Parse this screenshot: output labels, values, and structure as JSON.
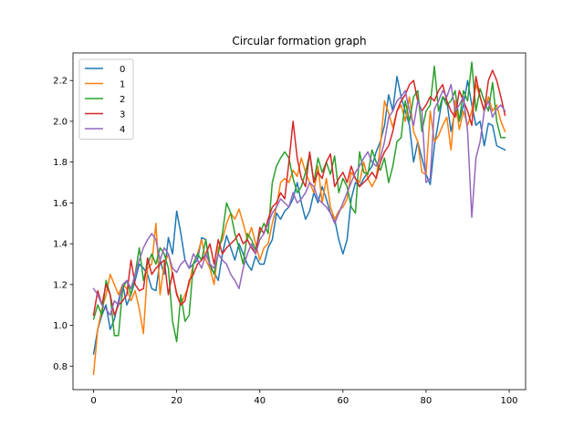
{
  "chart_data": {
    "type": "line",
    "title": "Circular formation graph",
    "xlabel": "",
    "ylabel": "",
    "xlim": [
      -4.95,
      103.95
    ],
    "ylim": [
      0.685,
      2.335
    ],
    "x_ticks": [
      0,
      20,
      40,
      60,
      80,
      100
    ],
    "y_ticks": [
      0.8,
      1.0,
      1.2,
      1.4,
      1.6,
      1.8,
      2.0,
      2.2
    ],
    "grid": false,
    "legend_position": "upper-left",
    "x": [
      0,
      1,
      2,
      3,
      4,
      5,
      6,
      7,
      8,
      9,
      10,
      11,
      12,
      13,
      14,
      15,
      16,
      17,
      18,
      19,
      20,
      21,
      22,
      23,
      24,
      25,
      26,
      27,
      28,
      29,
      30,
      31,
      32,
      33,
      34,
      35,
      36,
      37,
      38,
      39,
      40,
      41,
      42,
      43,
      44,
      45,
      46,
      47,
      48,
      49,
      50,
      51,
      52,
      53,
      54,
      55,
      56,
      57,
      58,
      59,
      60,
      61,
      62,
      63,
      64,
      65,
      66,
      67,
      68,
      69,
      70,
      71,
      72,
      73,
      74,
      75,
      76,
      77,
      78,
      79,
      80,
      81,
      82,
      83,
      84,
      85,
      86,
      87,
      88,
      89,
      90,
      91,
      92,
      93,
      94,
      95,
      96,
      97,
      98,
      99
    ],
    "series": [
      {
        "name": "0",
        "color": "#1f77b4",
        "values": [
          0.86,
          0.98,
          1.05,
          1.1,
          0.98,
          1.03,
          1.12,
          1.2,
          1.1,
          1.15,
          1.22,
          1.3,
          1.28,
          1.25,
          1.18,
          1.17,
          1.32,
          1.25,
          1.43,
          1.35,
          1.56,
          1.45,
          1.32,
          1.28,
          1.3,
          1.32,
          1.43,
          1.42,
          1.28,
          1.26,
          1.22,
          1.35,
          1.44,
          1.38,
          1.32,
          1.4,
          1.35,
          1.3,
          1.27,
          1.34,
          1.3,
          1.3,
          1.38,
          1.42,
          1.55,
          1.52,
          1.56,
          1.58,
          1.62,
          1.7,
          1.6,
          1.52,
          1.56,
          1.65,
          1.6,
          1.68,
          1.62,
          1.55,
          1.52,
          1.42,
          1.35,
          1.42,
          1.62,
          1.7,
          1.68,
          1.72,
          1.75,
          1.78,
          1.85,
          1.9,
          1.98,
          2.13,
          2.05,
          2.22,
          2.12,
          2.05,
          1.98,
          1.8,
          1.9,
          1.82,
          1.74,
          1.69,
          1.88,
          2.0,
          2.12,
          2.1,
          1.95,
          2.05,
          2.0,
          2.08,
          2.2,
          2.08,
          1.98,
          2.0,
          1.88,
          1.99,
          1.98,
          1.88,
          1.87,
          1.86
        ]
      },
      {
        "name": "1",
        "color": "#ff7f0e",
        "values": [
          0.76,
          0.98,
          1.08,
          1.15,
          1.25,
          1.2,
          1.15,
          1.2,
          1.18,
          1.12,
          1.17,
          1.08,
          0.96,
          1.28,
          1.3,
          1.5,
          1.15,
          1.3,
          1.35,
          1.25,
          1.16,
          1.1,
          1.15,
          1.2,
          1.3,
          1.35,
          1.42,
          1.32,
          1.28,
          1.2,
          1.38,
          1.42,
          1.5,
          1.55,
          1.52,
          1.57,
          1.5,
          1.42,
          1.48,
          1.4,
          1.32,
          1.38,
          1.4,
          1.5,
          1.58,
          1.7,
          1.72,
          1.7,
          1.76,
          1.73,
          1.82,
          1.75,
          1.7,
          1.65,
          1.78,
          1.6,
          1.72,
          1.58,
          1.52,
          1.56,
          1.58,
          1.62,
          1.75,
          1.72,
          1.7,
          1.8,
          1.72,
          1.68,
          1.72,
          1.88,
          2.1,
          2.04,
          1.97,
          2.05,
          2.08,
          2.0,
          2.12,
          1.95,
          1.9,
          1.75,
          1.74,
          2.05,
          1.9,
          1.93,
          1.98,
          2.02,
          1.86,
          2.1,
          1.96,
          2.05,
          1.98,
          2.05,
          2.18,
          2.12,
          2.05,
          2.12,
          2.05,
          2.08,
          2.0,
          1.95
        ]
      },
      {
        "name": "2",
        "color": "#2ca02c",
        "values": [
          1.03,
          1.1,
          1.05,
          1.22,
          1.15,
          0.95,
          0.95,
          1.18,
          1.22,
          1.15,
          1.25,
          1.38,
          1.22,
          1.3,
          1.35,
          1.3,
          1.38,
          1.35,
          1.28,
          1.02,
          0.92,
          1.15,
          1.02,
          1.05,
          1.3,
          1.35,
          1.32,
          1.42,
          1.3,
          1.25,
          1.35,
          1.45,
          1.6,
          1.55,
          1.45,
          1.38,
          1.3,
          1.45,
          1.42,
          1.37,
          1.45,
          1.5,
          1.45,
          1.7,
          1.78,
          1.82,
          1.85,
          1.82,
          1.72,
          1.65,
          1.68,
          1.75,
          1.84,
          1.7,
          1.82,
          1.75,
          1.8,
          1.74,
          1.83,
          1.65,
          1.72,
          1.68,
          1.58,
          1.55,
          1.85,
          1.75,
          1.74,
          1.86,
          1.8,
          1.76,
          1.82,
          1.7,
          1.78,
          1.9,
          1.92,
          2.1,
          2.0,
          2.12,
          2.15,
          1.95,
          2.05,
          2.08,
          2.27,
          2.05,
          2.12,
          2.08,
          2.1,
          2.15,
          2.0,
          2.15,
          2.1,
          2.29,
          2.05,
          2.16,
          2.1,
          2.05,
          2.19,
          2.0,
          1.92,
          1.92
        ]
      },
      {
        "name": "3",
        "color": "#d62728",
        "values": [
          1.05,
          1.17,
          1.1,
          1.2,
          1.15,
          1.05,
          1.1,
          1.12,
          1.15,
          1.32,
          1.2,
          1.17,
          1.18,
          1.33,
          1.25,
          1.28,
          1.3,
          1.32,
          1.15,
          1.26,
          1.15,
          1.1,
          1.12,
          1.22,
          1.25,
          1.3,
          1.32,
          1.35,
          1.4,
          1.3,
          1.42,
          1.35,
          1.38,
          1.4,
          1.42,
          1.45,
          1.4,
          1.42,
          1.38,
          1.35,
          1.48,
          1.45,
          1.52,
          1.58,
          1.6,
          1.65,
          1.62,
          1.8,
          2.0,
          1.82,
          1.72,
          1.68,
          1.85,
          1.7,
          1.75,
          1.72,
          1.8,
          1.84,
          1.68,
          1.72,
          1.75,
          1.7,
          1.78,
          1.72,
          1.68,
          1.7,
          1.72,
          1.75,
          1.72,
          1.8,
          1.85,
          1.88,
          1.95,
          2.05,
          2.1,
          2.13,
          2.18,
          2.2,
          2.1,
          2.05,
          2.08,
          2.12,
          2.1,
          2.15,
          2.18,
          2.1,
          2.05,
          2.02,
          2.15,
          2.1,
          2.05,
          1.98,
          2.22,
          2.12,
          2.05,
          2.2,
          2.25,
          2.2,
          2.12,
          2.03
        ]
      },
      {
        "name": "4",
        "color": "#9467bd",
        "values": [
          1.18,
          1.15,
          1.1,
          1.08,
          1.05,
          1.12,
          1.1,
          1.2,
          1.22,
          1.18,
          1.25,
          1.32,
          1.38,
          1.42,
          1.45,
          1.42,
          1.32,
          1.38,
          1.35,
          1.28,
          1.26,
          1.3,
          1.32,
          1.28,
          1.35,
          1.32,
          1.28,
          1.35,
          1.3,
          1.28,
          1.35,
          1.32,
          1.3,
          1.25,
          1.22,
          1.18,
          1.28,
          1.35,
          1.4,
          1.35,
          1.42,
          1.45,
          1.5,
          1.55,
          1.58,
          1.62,
          1.6,
          1.58,
          1.65,
          1.6,
          1.62,
          1.65,
          1.7,
          1.68,
          1.62,
          1.6,
          1.58,
          1.55,
          1.5,
          1.55,
          1.6,
          1.65,
          1.7,
          1.75,
          1.78,
          1.82,
          1.85,
          1.8,
          1.78,
          1.82,
          1.9,
          2.02,
          2.05,
          2.1,
          2.12,
          2.15,
          2.05,
          1.98,
          2.1,
          2.05,
          1.7,
          1.72,
          2.06,
          2.1,
          2.15,
          2.12,
          2.18,
          2.05,
          2.08,
          2.12,
          1.95,
          1.53,
          1.82,
          1.9,
          2.05,
          2.1,
          2.02,
          2.06,
          2.08,
          2.05
        ]
      }
    ]
  }
}
